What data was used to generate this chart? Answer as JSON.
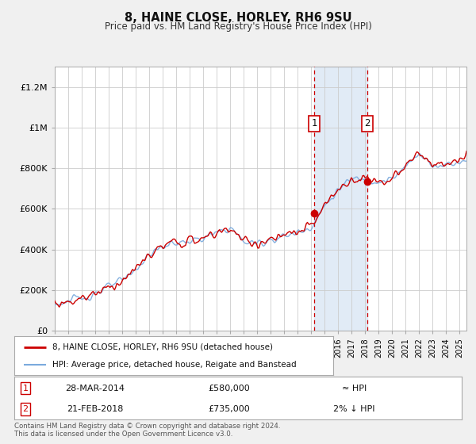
{
  "title": "8, HAINE CLOSE, HORLEY, RH6 9SU",
  "subtitle": "Price paid vs. HM Land Registry's House Price Index (HPI)",
  "hpi_color": "#7aaadd",
  "price_color": "#cc0000",
  "background_color": "#f0f0f0",
  "chart_bg": "#ffffff",
  "grid_color": "#cccccc",
  "shade_color": "#dce8f5",
  "transaction1": {
    "date_num": 2014.24,
    "price": 580000,
    "label": "1"
  },
  "transaction2": {
    "date_num": 2018.13,
    "price": 735000,
    "label": "2"
  },
  "legend1": "8, HAINE CLOSE, HORLEY, RH6 9SU (detached house)",
  "legend2": "HPI: Average price, detached house, Reigate and Banstead",
  "footer1": "Contains HM Land Registry data © Crown copyright and database right 2024.",
  "footer2": "This data is licensed under the Open Government Licence v3.0.",
  "table": [
    {
      "num": "1",
      "date": "28-MAR-2014",
      "price": "£580,000",
      "hpi": "≈ HPI"
    },
    {
      "num": "2",
      "date": "21-FEB-2018",
      "price": "£735,000",
      "hpi": "2% ↓ HPI"
    }
  ],
  "ylim": [
    0,
    1300000
  ],
  "yticks": [
    0,
    200000,
    400000,
    600000,
    800000,
    1000000,
    1200000
  ],
  "ytick_labels": [
    "£0",
    "£200K",
    "£400K",
    "£600K",
    "£800K",
    "£1M",
    "£1.2M"
  ],
  "xlim_start": 1995.0,
  "xlim_end": 2025.5
}
